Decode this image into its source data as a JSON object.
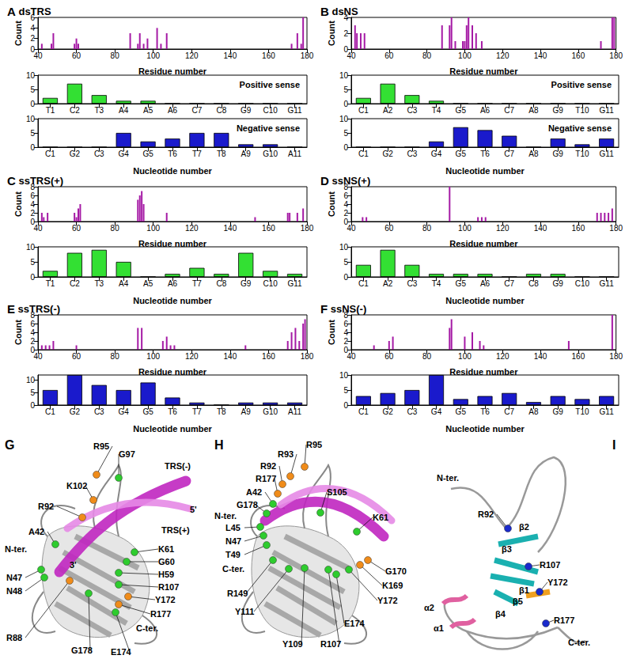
{
  "chart_data": [
    {
      "panel": "A",
      "title": "dsTRS",
      "type": "bar",
      "x": [
        42,
        47,
        48,
        59,
        60,
        61,
        88,
        92,
        93,
        95,
        97,
        102,
        104,
        107,
        172,
        175,
        177,
        178
      ],
      "values": [
        1,
        1,
        3,
        1,
        2,
        1,
        3,
        1,
        3,
        1,
        2,
        4,
        1,
        3,
        1,
        3,
        1,
        6
      ],
      "color": "#a51aa5",
      "xlim": [
        40,
        180
      ],
      "xticks": [
        40,
        60,
        80,
        100,
        120,
        140,
        160,
        180
      ],
      "ylim": [
        0,
        6
      ],
      "yticks": [
        0,
        2,
        4,
        6
      ],
      "x_label": "Residue number",
      "y_label": "Count"
    },
    {
      "panel": "A",
      "title": "Positive sense",
      "type": "bar",
      "categories": [
        "T1",
        "C2",
        "T3",
        "A4",
        "A5",
        "A6",
        "C7",
        "C8",
        "G9",
        "C10",
        "G11"
      ],
      "values": [
        2,
        7,
        3,
        1,
        1,
        0,
        0,
        0,
        0,
        0,
        0
      ],
      "color": "#33e033",
      "ylim": [
        0,
        10
      ],
      "yticks": [
        0,
        5,
        10
      ]
    },
    {
      "panel": "A",
      "title": "Negative sense",
      "type": "bar",
      "categories": [
        "C1",
        "G2",
        "C3",
        "G4",
        "G5",
        "T6",
        "T7",
        "T8",
        "A9",
        "G10",
        "A11"
      ],
      "values": [
        0,
        0,
        0,
        5,
        2,
        3,
        5,
        5,
        1,
        1,
        0
      ],
      "color": "#1a1acc",
      "ylim": [
        0,
        10
      ],
      "yticks": [
        0,
        5,
        10
      ],
      "x_label": "Nucleotide number"
    },
    {
      "panel": "B",
      "title": "dsNS",
      "type": "bar",
      "x": [
        42,
        43,
        45,
        47,
        88,
        92,
        93,
        95,
        99,
        100,
        101,
        102,
        104,
        106,
        109,
        172,
        178,
        179
      ],
      "values": [
        3,
        2,
        2,
        2,
        3,
        3,
        4,
        1,
        1,
        1,
        3,
        4,
        3,
        2,
        1,
        1,
        4,
        4
      ],
      "color": "#a51aa5",
      "xlim": [
        40,
        180
      ],
      "xticks": [
        40,
        60,
        80,
        100,
        120,
        140,
        160,
        180
      ],
      "ylim": [
        0,
        4
      ],
      "yticks": [
        0,
        2,
        4
      ],
      "x_label": "Residue number",
      "y_label": "Count"
    },
    {
      "panel": "B",
      "title": "Positive sense",
      "type": "bar",
      "categories": [
        "C1",
        "A2",
        "C3",
        "T4",
        "G5",
        "A6",
        "C7",
        "A8",
        "G9",
        "T10",
        "G11"
      ],
      "values": [
        2,
        7,
        3,
        1,
        0,
        0,
        0,
        0,
        0,
        0,
        0
      ],
      "color": "#33e033",
      "ylim": [
        0,
        10
      ],
      "yticks": [
        0,
        5,
        10
      ]
    },
    {
      "panel": "B",
      "title": "Negative sense",
      "type": "bar",
      "categories": [
        "C1",
        "G2",
        "C3",
        "G4",
        "G5",
        "T6",
        "C7",
        "A8",
        "G9",
        "T10",
        "G11"
      ],
      "values": [
        0,
        0,
        0,
        2,
        7,
        6,
        4,
        0,
        3,
        1,
        3
      ],
      "color": "#1a1acc",
      "ylim": [
        0,
        10
      ],
      "yticks": [
        0,
        5,
        10
      ],
      "x_label": "Nucleotide number"
    },
    {
      "panel": "C",
      "title": "ssTRS(+)",
      "type": "bar",
      "x": [
        42,
        43,
        45,
        59,
        60,
        61,
        62,
        92,
        93,
        94,
        95,
        107,
        153,
        170,
        171,
        175,
        178
      ],
      "values": [
        2,
        1,
        2,
        2,
        1,
        3,
        4,
        5,
        6,
        7,
        4,
        2,
        1,
        2,
        2,
        2,
        3
      ],
      "color": "#a51aa5",
      "xlim": [
        40,
        180
      ],
      "xticks": [
        40,
        60,
        80,
        100,
        120,
        140,
        160,
        180
      ],
      "ylim": [
        0,
        8
      ],
      "yticks": [
        0,
        2,
        4,
        6,
        8
      ],
      "x_label": "Residue number",
      "y_label": "Count"
    },
    {
      "panel": "C",
      "type": "bar",
      "categories": [
        "T1",
        "C2",
        "T3",
        "A4",
        "A5",
        "A6",
        "T7",
        "C8",
        "G9",
        "C10",
        "G11"
      ],
      "values": [
        2,
        8,
        9,
        5,
        0,
        1,
        3,
        1,
        8,
        2,
        1
      ],
      "color": "#33e033",
      "ylim": [
        0,
        10
      ],
      "yticks": [
        0,
        5,
        10
      ],
      "x_label": "Nucleotide number"
    },
    {
      "panel": "D",
      "title": "ssNS(+)",
      "type": "bar",
      "x": [
        46,
        48,
        92,
        107,
        109,
        111,
        170,
        172,
        174,
        176,
        178
      ],
      "values": [
        1,
        1,
        8,
        1,
        1,
        1,
        2,
        2,
        2,
        2,
        3
      ],
      "color": "#a51aa5",
      "xlim": [
        40,
        180
      ],
      "xticks": [
        40,
        60,
        80,
        100,
        120,
        140,
        160,
        180
      ],
      "ylim": [
        0,
        8
      ],
      "yticks": [
        0,
        2,
        4,
        6,
        8
      ],
      "x_label": "Residue number",
      "y_label": "Count"
    },
    {
      "panel": "D",
      "type": "bar",
      "categories": [
        "C1",
        "A2",
        "C3",
        "T4",
        "G5",
        "A6",
        "C7",
        "C8",
        "G9",
        "C10",
        "G11"
      ],
      "values": [
        4,
        9,
        4,
        1,
        1,
        1,
        0,
        1,
        1,
        0,
        0
      ],
      "color": "#33e033",
      "ylim": [
        0,
        10
      ],
      "yticks": [
        0,
        5,
        10
      ],
      "x_label": "Nucleotide number"
    },
    {
      "panel": "E",
      "title": "ssTRS(-)",
      "type": "bar",
      "x": [
        42,
        44,
        46,
        48,
        60,
        92,
        94,
        105,
        107,
        109,
        111,
        148,
        170,
        172,
        174,
        176,
        178,
        179
      ],
      "values": [
        1,
        1,
        1,
        2,
        1,
        5,
        5,
        2,
        3,
        1,
        1,
        1,
        2,
        4,
        5,
        2,
        6,
        7
      ],
      "color": "#a51aa5",
      "xlim": [
        40,
        180
      ],
      "xticks": [
        40,
        60,
        80,
        100,
        120,
        140,
        160,
        180
      ],
      "ylim": [
        0,
        8
      ],
      "yticks": [
        0,
        2,
        4,
        6,
        8
      ],
      "x_label": "Residue number",
      "y_label": "Count"
    },
    {
      "panel": "E",
      "type": "bar",
      "categories": [
        "C1",
        "G2",
        "C3",
        "G4",
        "G5",
        "T6",
        "T7",
        "T8",
        "A9",
        "G10",
        "A11"
      ],
      "values": [
        6,
        12,
        8,
        6,
        9,
        3,
        1,
        0,
        1,
        1,
        1
      ],
      "color": "#1a1acc",
      "ylim": [
        0,
        12
      ],
      "yticks": [
        0,
        5,
        10
      ],
      "x_label": "Nucleotide number"
    },
    {
      "panel": "F",
      "title": "ssNS(-)",
      "type": "bar",
      "x": [
        52,
        60,
        62,
        92,
        93,
        100,
        104,
        108,
        110,
        155,
        178
      ],
      "values": [
        1,
        2,
        3,
        5,
        7,
        3,
        4,
        2,
        1,
        2,
        8
      ],
      "color": "#a51aa5",
      "xlim": [
        40,
        180
      ],
      "xticks": [
        40,
        60,
        80,
        100,
        120,
        140,
        160,
        180
      ],
      "ylim": [
        0,
        8
      ],
      "yticks": [
        0,
        2,
        4,
        6,
        8
      ],
      "x_label": "Residue number",
      "y_label": "Count"
    },
    {
      "panel": "F",
      "type": "bar",
      "categories": [
        "C1",
        "G2",
        "C3",
        "G4",
        "G5",
        "T6",
        "C7",
        "A8",
        "G9",
        "T10",
        "G11"
      ],
      "values": [
        3,
        4,
        5,
        10,
        2,
        3,
        4,
        1,
        3,
        2,
        3
      ],
      "color": "#1a1acc",
      "ylim": [
        0,
        10
      ],
      "yticks": [
        0,
        5,
        10
      ],
      "x_label": "Nucleotide number"
    }
  ],
  "structures": [
    {
      "panel": "G",
      "labels": [
        "R95",
        "G97",
        "K102",
        "R92",
        "A42",
        "N-ter.",
        "N47",
        "N48",
        "R88",
        "TRS(-)",
        "5'",
        "TRS(+)",
        "K61",
        "G60",
        "H59",
        "R107",
        "Y172",
        "R177",
        "C-ter.",
        "E174",
        "G178",
        "3'"
      ]
    },
    {
      "panel": "H",
      "labels": [
        "R95",
        "R93",
        "R92",
        "R177",
        "A42",
        "G178",
        "N-ter.",
        "L45",
        "N47",
        "T49",
        "C-ter.",
        "R149",
        "Y111",
        "S105",
        "K61",
        "G170",
        "K169",
        "Y172",
        "E174",
        "R107",
        "Y109"
      ]
    },
    {
      "panel": "I",
      "labels": [
        "N-ter.",
        "R92",
        "β2",
        "R107",
        "β3",
        "Y172",
        "β1",
        "β5",
        "β4",
        "α2",
        "α1",
        "R177",
        "C-ter."
      ]
    }
  ]
}
